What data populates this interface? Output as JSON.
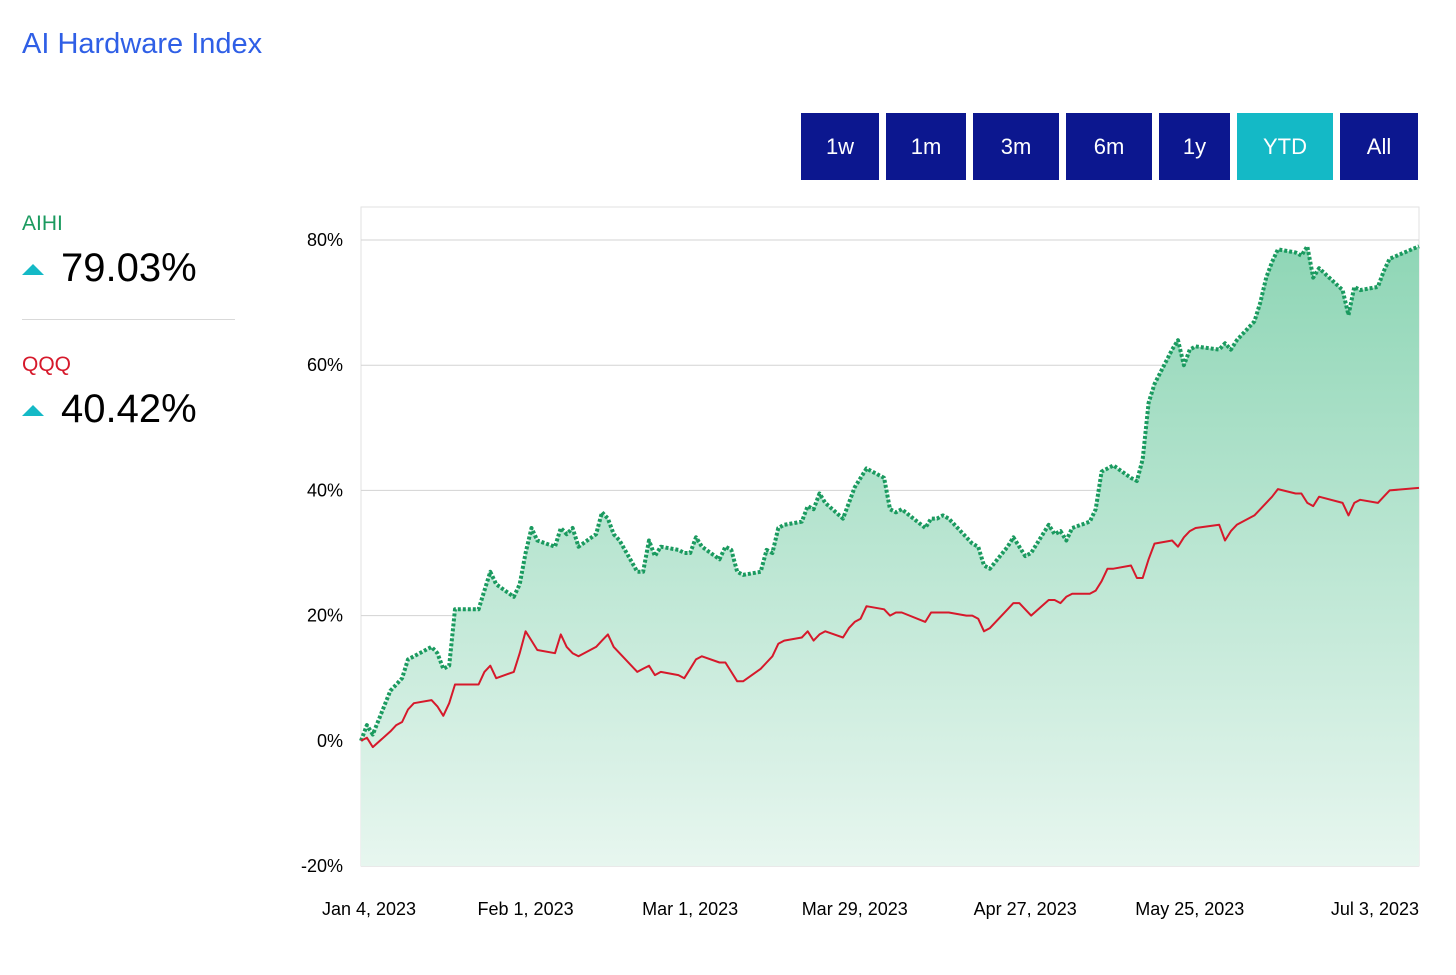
{
  "title": "AI Hardware Index",
  "range_buttons": [
    {
      "label": "1w",
      "active": false
    },
    {
      "label": "1m",
      "active": false
    },
    {
      "label": "3m",
      "active": false
    },
    {
      "label": "6m",
      "active": false
    },
    {
      "label": "1y",
      "active": false
    },
    {
      "label": "YTD",
      "active": true
    },
    {
      "label": "All",
      "active": false
    }
  ],
  "metrics": [
    {
      "name": "AIHI",
      "value": "79.03%",
      "direction": "up",
      "color": "#1a9a5f"
    },
    {
      "name": "QQQ",
      "value": "40.42%",
      "direction": "up",
      "color": "#d6192b"
    }
  ],
  "colors": {
    "accent_title": "#2f5fe6",
    "button_bg": "#0c178f",
    "button_active_bg": "#14b9c6",
    "aihi_line": "#1a9a5f",
    "aihi_fill_top": "#8fd6b6",
    "qqq_line": "#d6192b",
    "up_icon": "#14b9c6"
  },
  "icons": {
    "up": "triangle-up-icon"
  },
  "chart_data": {
    "type": "area",
    "title": "",
    "xlabel": "",
    "ylabel": "",
    "ylim": [
      -20,
      80
    ],
    "yticks": [
      "80%",
      "60%",
      "40%",
      "20%",
      "0%",
      "-20%"
    ],
    "ytick_values": [
      80,
      60,
      40,
      20,
      0,
      -20
    ],
    "xticks": [
      "Jan 4, 2023",
      "Feb 1, 2023",
      "Mar 1, 2023",
      "Mar 29, 2023",
      "Apr 27, 2023",
      "May 25, 2023",
      "Jul 3, 2023"
    ],
    "xtick_dates": [
      "2023-01-04",
      "2023-02-01",
      "2023-03-01",
      "2023-03-29",
      "2023-04-27",
      "2023-05-25",
      "2023-07-03"
    ],
    "grid": true,
    "legend": "left",
    "series": [
      {
        "name": "AIHI",
        "style": "dotted-line-with-area",
        "points": [
          [
            "2023-01-04",
            0
          ],
          [
            "2023-01-05",
            2.5
          ],
          [
            "2023-01-06",
            1
          ],
          [
            "2023-01-09",
            8
          ],
          [
            "2023-01-10",
            9
          ],
          [
            "2023-01-11",
            10
          ],
          [
            "2023-01-12",
            13
          ],
          [
            "2023-01-13",
            13.5
          ],
          [
            "2023-01-16",
            15
          ],
          [
            "2023-01-17",
            14
          ],
          [
            "2023-01-18",
            11.5
          ],
          [
            "2023-01-19",
            12
          ],
          [
            "2023-01-20",
            21
          ],
          [
            "2023-01-23",
            21
          ],
          [
            "2023-01-24",
            21
          ],
          [
            "2023-01-25",
            24
          ],
          [
            "2023-01-26",
            27
          ],
          [
            "2023-01-27",
            25
          ],
          [
            "2023-01-30",
            23
          ],
          [
            "2023-01-31",
            25
          ],
          [
            "2023-02-01",
            30
          ],
          [
            "2023-02-02",
            34
          ],
          [
            "2023-02-03",
            32
          ],
          [
            "2023-02-06",
            31
          ],
          [
            "2023-02-07",
            34
          ],
          [
            "2023-02-08",
            33
          ],
          [
            "2023-02-09",
            34
          ],
          [
            "2023-02-10",
            31
          ],
          [
            "2023-02-13",
            33
          ],
          [
            "2023-02-14",
            36.5
          ],
          [
            "2023-02-15",
            35.5
          ],
          [
            "2023-02-16",
            33
          ],
          [
            "2023-02-17",
            32
          ],
          [
            "2023-02-20",
            27
          ],
          [
            "2023-02-21",
            27
          ],
          [
            "2023-02-22",
            32
          ],
          [
            "2023-02-23",
            29.5
          ],
          [
            "2023-02-24",
            31
          ],
          [
            "2023-02-27",
            30.5
          ],
          [
            "2023-02-28",
            30
          ],
          [
            "2023-03-01",
            30
          ],
          [
            "2023-03-02",
            32.5
          ],
          [
            "2023-03-03",
            31
          ],
          [
            "2023-03-06",
            29
          ],
          [
            "2023-03-07",
            31
          ],
          [
            "2023-03-08",
            30.5
          ],
          [
            "2023-03-09",
            27
          ],
          [
            "2023-03-10",
            26.5
          ],
          [
            "2023-03-13",
            27
          ],
          [
            "2023-03-14",
            30.5
          ],
          [
            "2023-03-15",
            30
          ],
          [
            "2023-03-16",
            34
          ],
          [
            "2023-03-17",
            34.5
          ],
          [
            "2023-03-20",
            35
          ],
          [
            "2023-03-21",
            37.5
          ],
          [
            "2023-03-22",
            37
          ],
          [
            "2023-03-23",
            39.5
          ],
          [
            "2023-03-24",
            38
          ],
          [
            "2023-03-27",
            35.5
          ],
          [
            "2023-03-28",
            38
          ],
          [
            "2023-03-29",
            40.5
          ],
          [
            "2023-03-30",
            42
          ],
          [
            "2023-03-31",
            43.5
          ],
          [
            "2023-04-03",
            42
          ],
          [
            "2023-04-04",
            37
          ],
          [
            "2023-04-05",
            36.5
          ],
          [
            "2023-04-06",
            37
          ],
          [
            "2023-04-10",
            34
          ],
          [
            "2023-04-11",
            35.5
          ],
          [
            "2023-04-12",
            35.5
          ],
          [
            "2023-04-13",
            36
          ],
          [
            "2023-04-14",
            35.5
          ],
          [
            "2023-04-17",
            32.5
          ],
          [
            "2023-04-18",
            31.5
          ],
          [
            "2023-04-19",
            31
          ],
          [
            "2023-04-20",
            28
          ],
          [
            "2023-04-21",
            27.5
          ],
          [
            "2023-04-24",
            31
          ],
          [
            "2023-04-25",
            32.5
          ],
          [
            "2023-04-26",
            31
          ],
          [
            "2023-04-27",
            29.5
          ],
          [
            "2023-04-28",
            30
          ],
          [
            "2023-05-01",
            34.5
          ],
          [
            "2023-05-02",
            33
          ],
          [
            "2023-05-03",
            33.5
          ],
          [
            "2023-05-04",
            32
          ],
          [
            "2023-05-05",
            34
          ],
          [
            "2023-05-08",
            35
          ],
          [
            "2023-05-09",
            37
          ],
          [
            "2023-05-10",
            43
          ],
          [
            "2023-05-11",
            43.5
          ],
          [
            "2023-05-12",
            44
          ],
          [
            "2023-05-15",
            42
          ],
          [
            "2023-05-16",
            41.5
          ],
          [
            "2023-05-17",
            45
          ],
          [
            "2023-05-18",
            54
          ],
          [
            "2023-05-19",
            57
          ],
          [
            "2023-05-22",
            62.5
          ],
          [
            "2023-05-23",
            64
          ],
          [
            "2023-05-24",
            60
          ],
          [
            "2023-05-25",
            62.5
          ],
          [
            "2023-05-26",
            63
          ],
          [
            "2023-05-30",
            62.5
          ],
          [
            "2023-05-31",
            63.5
          ],
          [
            "2023-06-01",
            62.5
          ],
          [
            "2023-06-02",
            64
          ],
          [
            "2023-06-05",
            67
          ],
          [
            "2023-06-06",
            70
          ],
          [
            "2023-06-07",
            74
          ],
          [
            "2023-06-08",
            76.5
          ],
          [
            "2023-06-09",
            78.5
          ],
          [
            "2023-06-12",
            78
          ],
          [
            "2023-06-13",
            77.5
          ],
          [
            "2023-06-14",
            79
          ],
          [
            "2023-06-15",
            74
          ],
          [
            "2023-06-16",
            75.5
          ],
          [
            "2023-06-20",
            72
          ],
          [
            "2023-06-21",
            68
          ],
          [
            "2023-06-22",
            72.5
          ],
          [
            "2023-06-23",
            72
          ],
          [
            "2023-06-26",
            72.5
          ],
          [
            "2023-06-27",
            75
          ],
          [
            "2023-06-28",
            77
          ],
          [
            "2023-07-03",
            79
          ]
        ]
      },
      {
        "name": "QQQ",
        "style": "line",
        "points": [
          [
            "2023-01-04",
            0
          ],
          [
            "2023-01-05",
            0.5
          ],
          [
            "2023-01-06",
            -1
          ],
          [
            "2023-01-09",
            1.5
          ],
          [
            "2023-01-10",
            2.5
          ],
          [
            "2023-01-11",
            3
          ],
          [
            "2023-01-12",
            5
          ],
          [
            "2023-01-13",
            6
          ],
          [
            "2023-01-16",
            6.5
          ],
          [
            "2023-01-17",
            5.5
          ],
          [
            "2023-01-18",
            4
          ],
          [
            "2023-01-19",
            6
          ],
          [
            "2023-01-20",
            9
          ],
          [
            "2023-01-23",
            9
          ],
          [
            "2023-01-24",
            9
          ],
          [
            "2023-01-25",
            11
          ],
          [
            "2023-01-26",
            12
          ],
          [
            "2023-01-27",
            10
          ],
          [
            "2023-01-30",
            11
          ],
          [
            "2023-01-31",
            14
          ],
          [
            "2023-02-01",
            17.5
          ],
          [
            "2023-02-02",
            16
          ],
          [
            "2023-02-03",
            14.5
          ],
          [
            "2023-02-06",
            14
          ],
          [
            "2023-02-07",
            17
          ],
          [
            "2023-02-08",
            15
          ],
          [
            "2023-02-09",
            14
          ],
          [
            "2023-02-10",
            13.5
          ],
          [
            "2023-02-13",
            15
          ],
          [
            "2023-02-14",
            16
          ],
          [
            "2023-02-15",
            17
          ],
          [
            "2023-02-16",
            15
          ],
          [
            "2023-02-17",
            14
          ],
          [
            "2023-02-20",
            11
          ],
          [
            "2023-02-21",
            11.5
          ],
          [
            "2023-02-22",
            12
          ],
          [
            "2023-02-23",
            10.5
          ],
          [
            "2023-02-24",
            11
          ],
          [
            "2023-02-27",
            10.5
          ],
          [
            "2023-02-28",
            10
          ],
          [
            "2023-03-01",
            11.5
          ],
          [
            "2023-03-02",
            13
          ],
          [
            "2023-03-03",
            13.5
          ],
          [
            "2023-03-06",
            12.5
          ],
          [
            "2023-03-07",
            12.5
          ],
          [
            "2023-03-08",
            11
          ],
          [
            "2023-03-09",
            9.5
          ],
          [
            "2023-03-10",
            9.5
          ],
          [
            "2023-03-13",
            11.5
          ],
          [
            "2023-03-14",
            12.5
          ],
          [
            "2023-03-15",
            13.5
          ],
          [
            "2023-03-16",
            15.5
          ],
          [
            "2023-03-17",
            16
          ],
          [
            "2023-03-20",
            16.5
          ],
          [
            "2023-03-21",
            17.5
          ],
          [
            "2023-03-22",
            16
          ],
          [
            "2023-03-23",
            17
          ],
          [
            "2023-03-24",
            17.5
          ],
          [
            "2023-03-27",
            16.5
          ],
          [
            "2023-03-28",
            18
          ],
          [
            "2023-03-29",
            19
          ],
          [
            "2023-03-30",
            19.5
          ],
          [
            "2023-03-31",
            21.5
          ],
          [
            "2023-04-03",
            21
          ],
          [
            "2023-04-04",
            20
          ],
          [
            "2023-04-05",
            20.5
          ],
          [
            "2023-04-06",
            20.5
          ],
          [
            "2023-04-10",
            19
          ],
          [
            "2023-04-11",
            20.5
          ],
          [
            "2023-04-12",
            20.5
          ],
          [
            "2023-04-13",
            20.5
          ],
          [
            "2023-04-14",
            20.5
          ],
          [
            "2023-04-17",
            20
          ],
          [
            "2023-04-18",
            20
          ],
          [
            "2023-04-19",
            19.5
          ],
          [
            "2023-04-20",
            17.5
          ],
          [
            "2023-04-21",
            18
          ],
          [
            "2023-04-24",
            21
          ],
          [
            "2023-04-25",
            22
          ],
          [
            "2023-04-26",
            22
          ],
          [
            "2023-04-27",
            21
          ],
          [
            "2023-04-28",
            20
          ],
          [
            "2023-05-01",
            22.5
          ],
          [
            "2023-05-02",
            22.5
          ],
          [
            "2023-05-03",
            22
          ],
          [
            "2023-05-04",
            23
          ],
          [
            "2023-05-05",
            23.5
          ],
          [
            "2023-05-08",
            23.5
          ],
          [
            "2023-05-09",
            24
          ],
          [
            "2023-05-10",
            25.5
          ],
          [
            "2023-05-11",
            27.5
          ],
          [
            "2023-05-12",
            27.5
          ],
          [
            "2023-05-15",
            28
          ],
          [
            "2023-05-16",
            26
          ],
          [
            "2023-05-17",
            26
          ],
          [
            "2023-05-18",
            29
          ],
          [
            "2023-05-19",
            31.5
          ],
          [
            "2023-05-22",
            32
          ],
          [
            "2023-05-23",
            31
          ],
          [
            "2023-05-24",
            32.5
          ],
          [
            "2023-05-25",
            33.5
          ],
          [
            "2023-05-26",
            34
          ],
          [
            "2023-05-30",
            34.5
          ],
          [
            "2023-05-31",
            32
          ],
          [
            "2023-06-01",
            33.5
          ],
          [
            "2023-06-02",
            34.5
          ],
          [
            "2023-06-05",
            36
          ],
          [
            "2023-06-06",
            37
          ],
          [
            "2023-06-07",
            38
          ],
          [
            "2023-06-08",
            39
          ],
          [
            "2023-06-09",
            40.2
          ],
          [
            "2023-06-12",
            39.5
          ],
          [
            "2023-06-13",
            39.5
          ],
          [
            "2023-06-14",
            38
          ],
          [
            "2023-06-15",
            37.5
          ],
          [
            "2023-06-16",
            39
          ],
          [
            "2023-06-20",
            38
          ],
          [
            "2023-06-21",
            36
          ],
          [
            "2023-06-22",
            38
          ],
          [
            "2023-06-23",
            38.5
          ],
          [
            "2023-06-26",
            38
          ],
          [
            "2023-06-27",
            39
          ],
          [
            "2023-06-28",
            40
          ],
          [
            "2023-07-03",
            40.4
          ]
        ]
      }
    ]
  }
}
